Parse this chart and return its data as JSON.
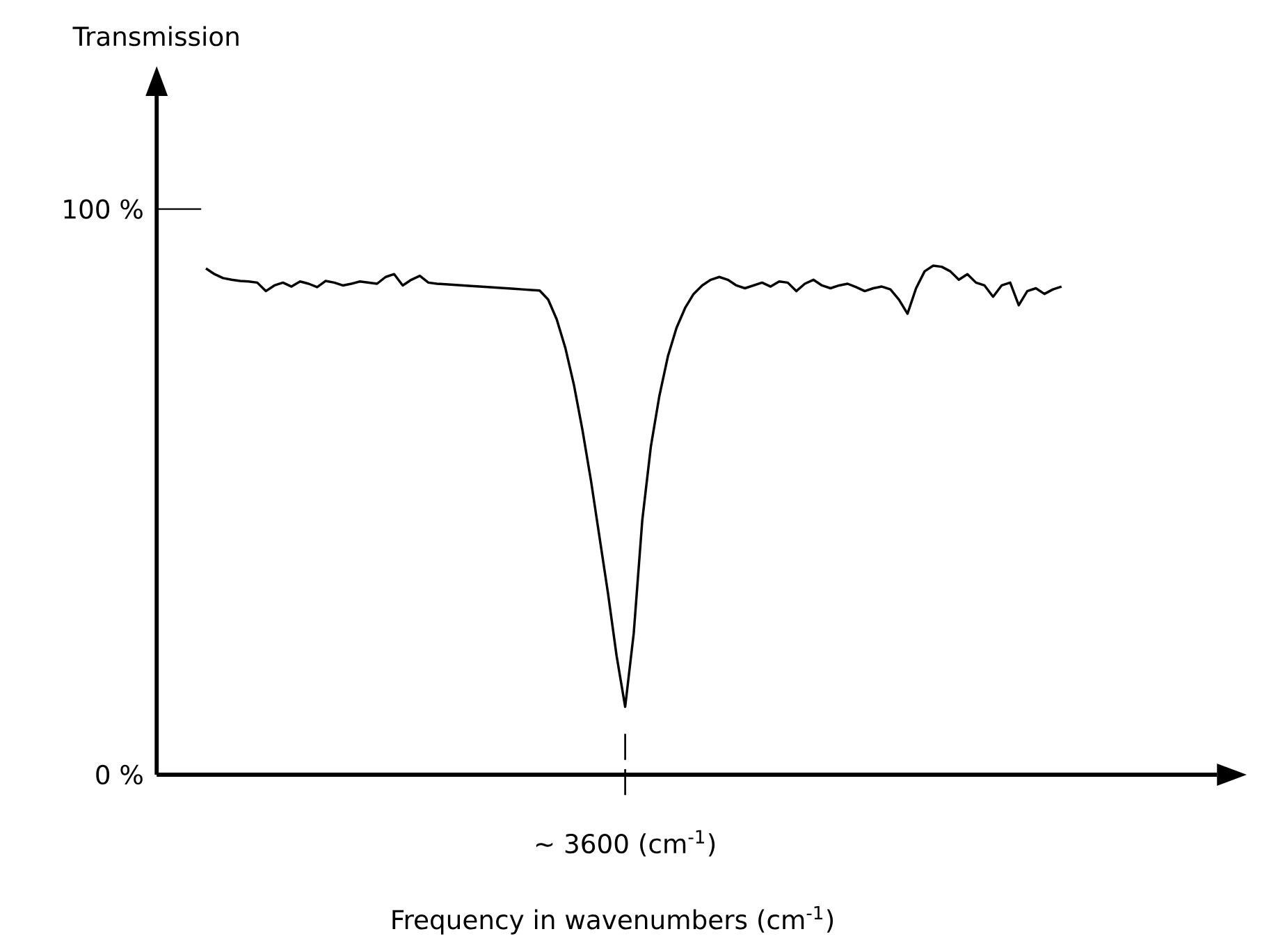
{
  "chart_data": {
    "type": "line",
    "ylabel": "Transmission",
    "xlabel": "Frequency in wavenumbers (cm$^{-1}$)",
    "annotations": [
      "~ 3600 (cm$^{-1}$)"
    ],
    "categories": [
      null,
      null,
      null,
      null,
      null,
      null,
      null,
      null,
      null,
      null,
      null,
      null,
      null,
      null,
      null,
      null,
      null,
      null,
      null,
      null,
      null,
      null,
      null,
      null,
      null,
      null,
      null,
      null,
      null,
      null,
      null,
      null,
      null,
      null,
      null,
      null,
      null,
      null,
      null,
      null,
      null,
      null,
      null,
      null,
      null,
      null,
      null,
      null,
      null,
      null,
      null,
      null,
      null,
      null,
      null,
      null,
      null,
      null,
      null,
      null,
      null,
      null,
      null,
      null,
      null,
      null,
      null,
      null,
      null,
      null,
      null,
      null,
      null,
      null,
      null,
      null,
      null,
      null,
      null,
      null,
      null,
      null,
      null,
      null,
      null,
      null,
      null,
      null,
      null,
      null,
      null,
      null,
      null,
      null,
      null,
      null,
      null,
      null,
      null,
      null,
      null
    ],
    "series": [
      {
        "color": "#000000",
        "values": [
          89.5,
          88.5,
          87.8,
          87.5,
          87.3,
          87.2,
          87.0,
          85.5,
          86.5,
          87.0,
          86.3,
          87.2,
          86.8,
          86.2,
          87.3,
          87.0,
          86.5,
          86.8,
          87.2,
          87.0,
          86.8,
          88.0,
          88.5,
          86.5,
          87.5,
          88.2,
          87.0,
          86.8,
          86.7,
          86.6,
          86.5,
          86.4,
          86.3,
          86.2,
          86.1,
          86.0,
          85.9,
          85.8,
          85.7,
          85.6,
          84.0,
          80.5,
          75.5,
          69,
          61,
          52,
          42,
          32,
          21,
          12,
          25,
          45,
          58,
          67,
          74,
          79,
          82.5,
          85,
          86.5,
          87.5,
          88,
          87.5,
          86.5,
          86.0,
          86.5,
          87.0,
          86.3,
          87.2,
          87.0,
          85.5,
          86.8,
          87.5,
          86.5,
          86.0,
          86.5,
          86.8,
          86.2,
          85.5,
          86.0,
          86.3,
          85.8,
          84.0,
          81.5,
          86,
          89,
          90,
          89.8,
          89,
          87.5,
          88.5,
          87,
          86.5,
          84.5,
          86.5,
          87,
          83.0,
          85.5,
          86.0,
          85.0,
          85.8,
          86.3
        ]
      }
    ],
    "ylim": [
      0,
      120
    ],
    "yticks": [
      {
        "value": 0,
        "label": "0 %"
      },
      {
        "value": 100,
        "label": "100 %"
      }
    ],
    "tick_labels": "y",
    "grid": false,
    "marker": "none",
    "line_style": "solid"
  }
}
